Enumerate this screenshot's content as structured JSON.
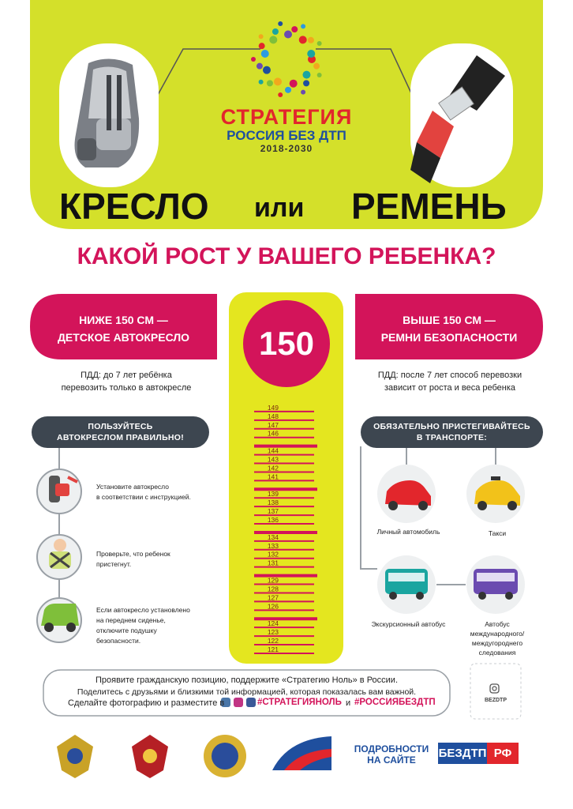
{
  "logo": {
    "title": "СТРАТЕГИЯ",
    "subtitle": "РОССИЯ БЕЗ ДТП",
    "years": "2018-2030"
  },
  "headline": {
    "left": "КРЕСЛО",
    "middle": "или",
    "right": "РЕМЕНЬ"
  },
  "question": "КАКОЙ РОСТ У ВАШЕГО РЕБЕНКА?",
  "left": {
    "badge": [
      "НИЖЕ 150 СМ —",
      "ДЕТСКОЕ АВТОКРЕСЛО"
    ],
    "note": [
      "ПДД: до 7 лет ребёнка",
      "перевозить только в автокресле"
    ],
    "header": [
      "ПОЛЬЗУЙТЕСЬ",
      "АВТОКРЕСЛОМ ПРАВИЛЬНО!"
    ],
    "tips": [
      [
        "Установите автокресло",
        "в соответствии с инструкцией."
      ],
      [
        "Проверьте, что ребенок",
        "пристегнут."
      ],
      [
        "Если автокресло установлено",
        "на переднем сиденье,",
        "отключите подушку",
        "безопасности."
      ]
    ]
  },
  "ruler": {
    "height": "150",
    "marks": [
      149,
      148,
      147,
      146,
      144,
      143,
      142,
      141,
      139,
      138,
      137,
      136,
      134,
      133,
      132,
      131,
      129,
      128,
      127,
      126,
      124,
      123,
      122,
      121
    ]
  },
  "right": {
    "badge": [
      "ВЫШЕ 150 СМ —",
      "РЕМНИ БЕЗОПАСНОСТИ"
    ],
    "note": [
      "ПДД: после 7 лет способ перевозки",
      "зависит от роста и веса ребенка"
    ],
    "header": [
      "ОБЯЗАТЕЛЬНО ПРИСТЕГИВАЙТЕСЬ",
      "В ТРАНСПОРТЕ:"
    ],
    "transport": [
      [
        "Личный автомобиль"
      ],
      [
        "Такси"
      ],
      [
        "Экскурсионный автобус"
      ],
      [
        "Автобус",
        "международного/",
        "междугороднего",
        "следования"
      ]
    ]
  },
  "footer": {
    "lines": [
      "Проявите гражданскую позицию, поддержите «Стратегию Ноль» в России.",
      "Поделитесь с друзьями и близкими той информацией, которая показалась вам важной."
    ],
    "share": "Сделайте фотографию и разместите в",
    "tag1": "#СТРАТЕГИЯНОЛЬ",
    "and": "и",
    "tag2": "#РОССИЯБЕЗДТП",
    "account": "BEZDTP"
  },
  "site": {
    "text": [
      "ПОДРОБНОСТИ",
      "НА САЙТЕ"
    ],
    "name": "БЕЗДТП",
    "zone": "РФ"
  }
}
